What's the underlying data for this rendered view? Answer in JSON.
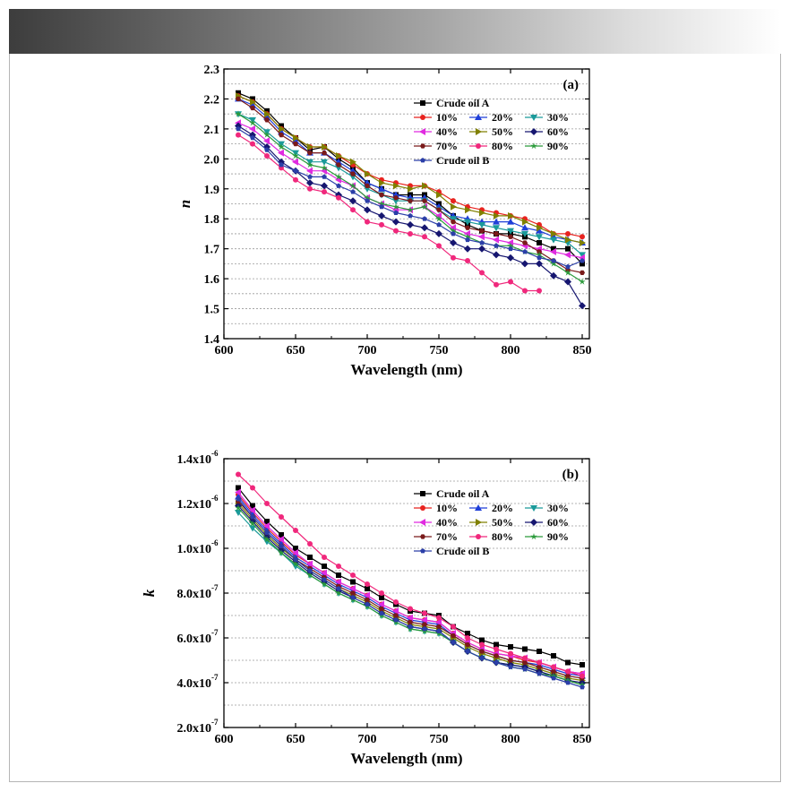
{
  "chart_data": [
    {
      "type": "line",
      "panel_label": "(a)",
      "xlabel": "Wavelength (nm)",
      "ylabel": "n",
      "xlim": [
        600,
        855
      ],
      "ylim": [
        1.4,
        2.3
      ],
      "xticks": [
        600,
        650,
        700,
        750,
        800,
        850
      ],
      "yticks": [
        1.4,
        1.5,
        1.6,
        1.7,
        1.8,
        1.9,
        2.0,
        2.1,
        2.2,
        2.3
      ],
      "ytick_labels": [
        "1.4",
        "1.5",
        "1.6",
        "1.7",
        "1.8",
        "1.9",
        "2.0",
        "2.1",
        "2.2",
        "2.3"
      ],
      "grid": "horizontal-dotted",
      "legend": "top-right",
      "x": [
        610,
        620,
        630,
        640,
        650,
        660,
        670,
        680,
        690,
        700,
        710,
        720,
        730,
        740,
        750,
        760,
        770,
        780,
        790,
        800,
        810,
        820,
        830,
        840,
        850
      ],
      "series": [
        {
          "name": "Crude oil A",
          "color": "#000000",
          "marker": "square",
          "values": [
            2.22,
            2.2,
            2.16,
            2.11,
            2.07,
            2.03,
            2.04,
            2.0,
            1.97,
            1.92,
            1.9,
            1.88,
            1.88,
            1.88,
            1.85,
            1.81,
            1.78,
            1.76,
            1.75,
            1.75,
            1.74,
            1.72,
            1.7,
            1.7,
            1.65
          ]
        },
        {
          "name": "10%",
          "color": "#e8231f",
          "marker": "circle",
          "values": [
            2.21,
            2.19,
            2.15,
            2.1,
            2.07,
            2.04,
            2.04,
            2.01,
            1.98,
            1.95,
            1.93,
            1.92,
            1.91,
            1.91,
            1.89,
            1.86,
            1.84,
            1.83,
            1.82,
            1.81,
            1.8,
            1.78,
            1.75,
            1.75,
            1.74
          ]
        },
        {
          "name": "20%",
          "color": "#1f3fd8",
          "marker": "triangle-up",
          "values": [
            2.2,
            2.18,
            2.14,
            2.09,
            2.06,
            2.02,
            2.02,
            1.99,
            1.96,
            1.92,
            1.9,
            1.88,
            1.87,
            1.87,
            1.84,
            1.81,
            1.8,
            1.79,
            1.79,
            1.79,
            1.77,
            1.76,
            1.74,
            1.73,
            1.72
          ]
        },
        {
          "name": "30%",
          "color": "#1a9a9a",
          "marker": "triangle-down",
          "values": [
            2.15,
            2.13,
            2.09,
            2.05,
            2.02,
            1.99,
            1.99,
            1.97,
            1.94,
            1.9,
            1.88,
            1.86,
            1.86,
            1.86,
            1.83,
            1.8,
            1.79,
            1.78,
            1.77,
            1.76,
            1.75,
            1.74,
            1.73,
            1.72,
            1.68
          ]
        },
        {
          "name": "40%",
          "color": "#e02be0",
          "marker": "triangle-left",
          "values": [
            2.12,
            2.1,
            2.06,
            2.02,
            1.99,
            1.96,
            1.96,
            1.93,
            1.91,
            1.87,
            1.85,
            1.83,
            1.83,
            1.84,
            1.81,
            1.77,
            1.75,
            1.74,
            1.73,
            1.72,
            1.71,
            1.7,
            1.69,
            1.68,
            1.67
          ]
        },
        {
          "name": "50%",
          "color": "#808000",
          "marker": "triangle-right",
          "values": [
            2.21,
            2.19,
            2.15,
            2.1,
            2.07,
            2.04,
            2.04,
            2.01,
            1.99,
            1.95,
            1.92,
            1.91,
            1.9,
            1.91,
            1.88,
            1.84,
            1.83,
            1.82,
            1.81,
            1.81,
            1.79,
            1.77,
            1.75,
            1.73,
            1.72
          ]
        },
        {
          "name": "60%",
          "color": "#161670",
          "marker": "diamond",
          "values": [
            2.11,
            2.08,
            2.04,
            1.99,
            1.96,
            1.92,
            1.91,
            1.88,
            1.86,
            1.83,
            1.81,
            1.79,
            1.78,
            1.77,
            1.75,
            1.72,
            1.7,
            1.7,
            1.68,
            1.67,
            1.65,
            1.65,
            1.61,
            1.59,
            1.51
          ]
        },
        {
          "name": "70%",
          "color": "#7a1a1a",
          "marker": "hexagon",
          "values": [
            2.2,
            2.17,
            2.13,
            2.08,
            2.05,
            2.02,
            2.02,
            1.98,
            1.95,
            1.91,
            1.88,
            1.87,
            1.86,
            1.86,
            1.83,
            1.79,
            1.77,
            1.76,
            1.75,
            1.74,
            1.72,
            1.69,
            1.66,
            1.63,
            1.62
          ]
        },
        {
          "name": "80%",
          "color": "#f0287c",
          "marker": "circle",
          "values": [
            2.08,
            2.05,
            2.01,
            1.97,
            1.93,
            1.9,
            1.89,
            1.87,
            1.83,
            1.79,
            1.78,
            1.76,
            1.75,
            1.74,
            1.71,
            1.67,
            1.66,
            1.62,
            1.58,
            1.59,
            1.56,
            1.56,
            null,
            null,
            null
          ]
        },
        {
          "name": "90%",
          "color": "#2a9a3a",
          "marker": "star",
          "values": [
            2.15,
            2.12,
            2.08,
            2.04,
            2.01,
            1.98,
            1.97,
            1.94,
            1.91,
            1.87,
            1.85,
            1.84,
            1.83,
            1.84,
            1.8,
            1.76,
            1.74,
            1.72,
            1.71,
            1.71,
            1.69,
            1.68,
            1.65,
            1.62,
            1.59
          ]
        },
        {
          "name": "Crude oil B",
          "color": "#2b3fa8",
          "marker": "pentagon",
          "values": [
            2.1,
            2.07,
            2.03,
            1.98,
            1.96,
            1.94,
            1.94,
            1.91,
            1.89,
            1.86,
            1.84,
            1.82,
            1.81,
            1.8,
            1.78,
            1.75,
            1.73,
            1.72,
            1.71,
            1.7,
            1.69,
            1.67,
            1.66,
            1.64,
            1.66
          ]
        }
      ]
    },
    {
      "type": "line",
      "panel_label": "(b)",
      "xlabel": "Wavelength (nm)",
      "ylabel": "k",
      "xlim": [
        600,
        855
      ],
      "ylim": [
        2e-07,
        1.4e-06
      ],
      "xticks": [
        600,
        650,
        700,
        750,
        800,
        850
      ],
      "yticks": [
        2e-07,
        4e-07,
        6e-07,
        8e-07,
        1e-06,
        1.2e-06,
        1.4e-06
      ],
      "ytick_mantissas": [
        "2.0x10",
        "4.0x10",
        "6.0x10",
        "8.0x10",
        "1.0x10",
        "1.2x10",
        "1.4x10"
      ],
      "ytick_exponents": [
        "-7",
        "-7",
        "-7",
        "-7",
        "-6",
        "-6",
        "-6"
      ],
      "grid": "horizontal-dotted",
      "legend": "top-right",
      "x": [
        610,
        620,
        630,
        640,
        650,
        660,
        670,
        680,
        690,
        700,
        710,
        720,
        730,
        740,
        750,
        760,
        770,
        780,
        790,
        800,
        810,
        820,
        830,
        840,
        850
      ],
      "series": [
        {
          "name": "Crude oil A",
          "color": "#000000",
          "marker": "square",
          "values": [
            1.27e-06,
            1.19e-06,
            1.12e-06,
            1.06e-06,
            1e-06,
            9.6e-07,
            9.2e-07,
            8.8e-07,
            8.5e-07,
            8.2e-07,
            7.8e-07,
            7.5e-07,
            7.2e-07,
            7.1e-07,
            7e-07,
            6.5e-07,
            6.2e-07,
            5.9e-07,
            5.7e-07,
            5.6e-07,
            5.5e-07,
            5.4e-07,
            5.2e-07,
            4.9e-07,
            4.8e-07
          ]
        },
        {
          "name": "10%",
          "color": "#e8231f",
          "marker": "circle",
          "values": [
            1.24e-06,
            1.16e-06,
            1.09e-06,
            1.03e-06,
            9.7e-07,
            9.3e-07,
            8.9e-07,
            8.5e-07,
            8.2e-07,
            7.9e-07,
            7.5e-07,
            7.2e-07,
            6.9e-07,
            6.8e-07,
            6.7e-07,
            6.2e-07,
            5.8e-07,
            5.5e-07,
            5.3e-07,
            5.2e-07,
            5e-07,
            4.9e-07,
            4.7e-07,
            4.5e-07,
            4.4e-07
          ]
        },
        {
          "name": "20%",
          "color": "#1f3fd8",
          "marker": "triangle-up",
          "values": [
            1.23e-06,
            1.15e-06,
            1.08e-06,
            1.02e-06,
            9.6e-07,
            9.2e-07,
            8.8e-07,
            8.4e-07,
            8.1e-07,
            7.8e-07,
            7.4e-07,
            7.1e-07,
            6.8e-07,
            6.7e-07,
            6.6e-07,
            6.1e-07,
            5.7e-07,
            5.4e-07,
            5.2e-07,
            5e-07,
            4.9e-07,
            4.8e-07,
            4.6e-07,
            4.4e-07,
            4.3e-07
          ]
        },
        {
          "name": "30%",
          "color": "#1a9a9a",
          "marker": "triangle-down",
          "values": [
            1.16e-06,
            1.09e-06,
            1.03e-06,
            9.8e-07,
            9.2e-07,
            8.8e-07,
            8.4e-07,
            8e-07,
            7.7e-07,
            7.4e-07,
            7e-07,
            6.7e-07,
            6.4e-07,
            6.3e-07,
            6.2e-07,
            5.8e-07,
            5.4e-07,
            5.1e-07,
            4.9e-07,
            4.8e-07,
            4.7e-07,
            4.5e-07,
            4.3e-07,
            4.1e-07,
            3.9e-07
          ]
        },
        {
          "name": "40%",
          "color": "#e02be0",
          "marker": "triangle-left",
          "values": [
            1.25e-06,
            1.17e-06,
            1.1e-06,
            1.04e-06,
            9.8e-07,
            9.3e-07,
            8.9e-07,
            8.5e-07,
            8.2e-07,
            7.9e-07,
            7.5e-07,
            7.2e-07,
            6.9e-07,
            6.8e-07,
            6.7e-07,
            6.2e-07,
            5.8e-07,
            5.5e-07,
            5.3e-07,
            5.2e-07,
            5.1e-07,
            4.9e-07,
            4.7e-07,
            4.5e-07,
            4.4e-07
          ]
        },
        {
          "name": "50%",
          "color": "#808000",
          "marker": "triangle-right",
          "values": [
            1.2e-06,
            1.13e-06,
            1.06e-06,
            1e-06,
            9.5e-07,
            9e-07,
            8.6e-07,
            8.2e-07,
            7.9e-07,
            7.6e-07,
            7.2e-07,
            6.9e-07,
            6.6e-07,
            6.5e-07,
            6.4e-07,
            6e-07,
            5.6e-07,
            5.3e-07,
            5.1e-07,
            4.9e-07,
            4.8e-07,
            4.6e-07,
            4.4e-07,
            4.2e-07,
            4.1e-07
          ]
        },
        {
          "name": "60%",
          "color": "#161670",
          "marker": "diamond",
          "values": [
            1.19e-06,
            1.12e-06,
            1.05e-06,
            9.9e-07,
            9.4e-07,
            8.9e-07,
            8.5e-07,
            8.1e-07,
            7.8e-07,
            7.5e-07,
            7.1e-07,
            6.8e-07,
            6.5e-07,
            6.4e-07,
            6.3e-07,
            5.8e-07,
            5.4e-07,
            5.1e-07,
            4.9e-07,
            4.8e-07,
            4.7e-07,
            4.5e-07,
            4.3e-07,
            4.1e-07,
            4e-07
          ]
        },
        {
          "name": "70%",
          "color": "#7a1a1a",
          "marker": "hexagon",
          "values": [
            1.21e-06,
            1.14e-06,
            1.07e-06,
            1.01e-06,
            9.5e-07,
            9.1e-07,
            8.7e-07,
            8.3e-07,
            8e-07,
            7.7e-07,
            7.3e-07,
            7e-07,
            6.7e-07,
            6.6e-07,
            6.5e-07,
            6.1e-07,
            5.7e-07,
            5.4e-07,
            5.2e-07,
            5e-07,
            4.9e-07,
            4.7e-07,
            4.5e-07,
            4.3e-07,
            4.2e-07
          ]
        },
        {
          "name": "80%",
          "color": "#f0287c",
          "marker": "circle",
          "values": [
            1.33e-06,
            1.27e-06,
            1.2e-06,
            1.14e-06,
            1.08e-06,
            1.02e-06,
            9.6e-07,
            9.2e-07,
            8.8e-07,
            8.4e-07,
            8e-07,
            7.6e-07,
            7.3e-07,
            7.1e-07,
            6.9e-07,
            6.5e-07,
            6e-07,
            5.7e-07,
            5.5e-07,
            5.3e-07,
            5.1e-07,
            4.9e-07,
            4.7e-07,
            4.5e-07,
            4.3e-07
          ]
        },
        {
          "name": "90%",
          "color": "#2a9a3a",
          "marker": "star",
          "values": [
            1.18e-06,
            1.11e-06,
            1.04e-06,
            9.8e-07,
            9.3e-07,
            8.8e-07,
            8.4e-07,
            8e-07,
            7.7e-07,
            7.4e-07,
            7e-07,
            6.7e-07,
            6.4e-07,
            6.3e-07,
            6.2e-07,
            5.8e-07,
            5.4e-07,
            5.1e-07,
            4.9e-07,
            4.7e-07,
            4.6e-07,
            4.4e-07,
            4.3e-07,
            4.1e-07,
            3.9e-07
          ]
        },
        {
          "name": "Crude oil B",
          "color": "#2b3fa8",
          "marker": "pentagon",
          "values": [
            1.22e-06,
            1.14e-06,
            1.07e-06,
            1.01e-06,
            9.5e-07,
            9e-07,
            8.6e-07,
            8.2e-07,
            7.8e-07,
            7.5e-07,
            7.1e-07,
            6.8e-07,
            6.5e-07,
            6.4e-07,
            6.3e-07,
            5.8e-07,
            5.4e-07,
            5.1e-07,
            4.9e-07,
            4.7e-07,
            4.6e-07,
            4.4e-07,
            4.2e-07,
            4e-07,
            3.8e-07
          ]
        }
      ]
    }
  ]
}
